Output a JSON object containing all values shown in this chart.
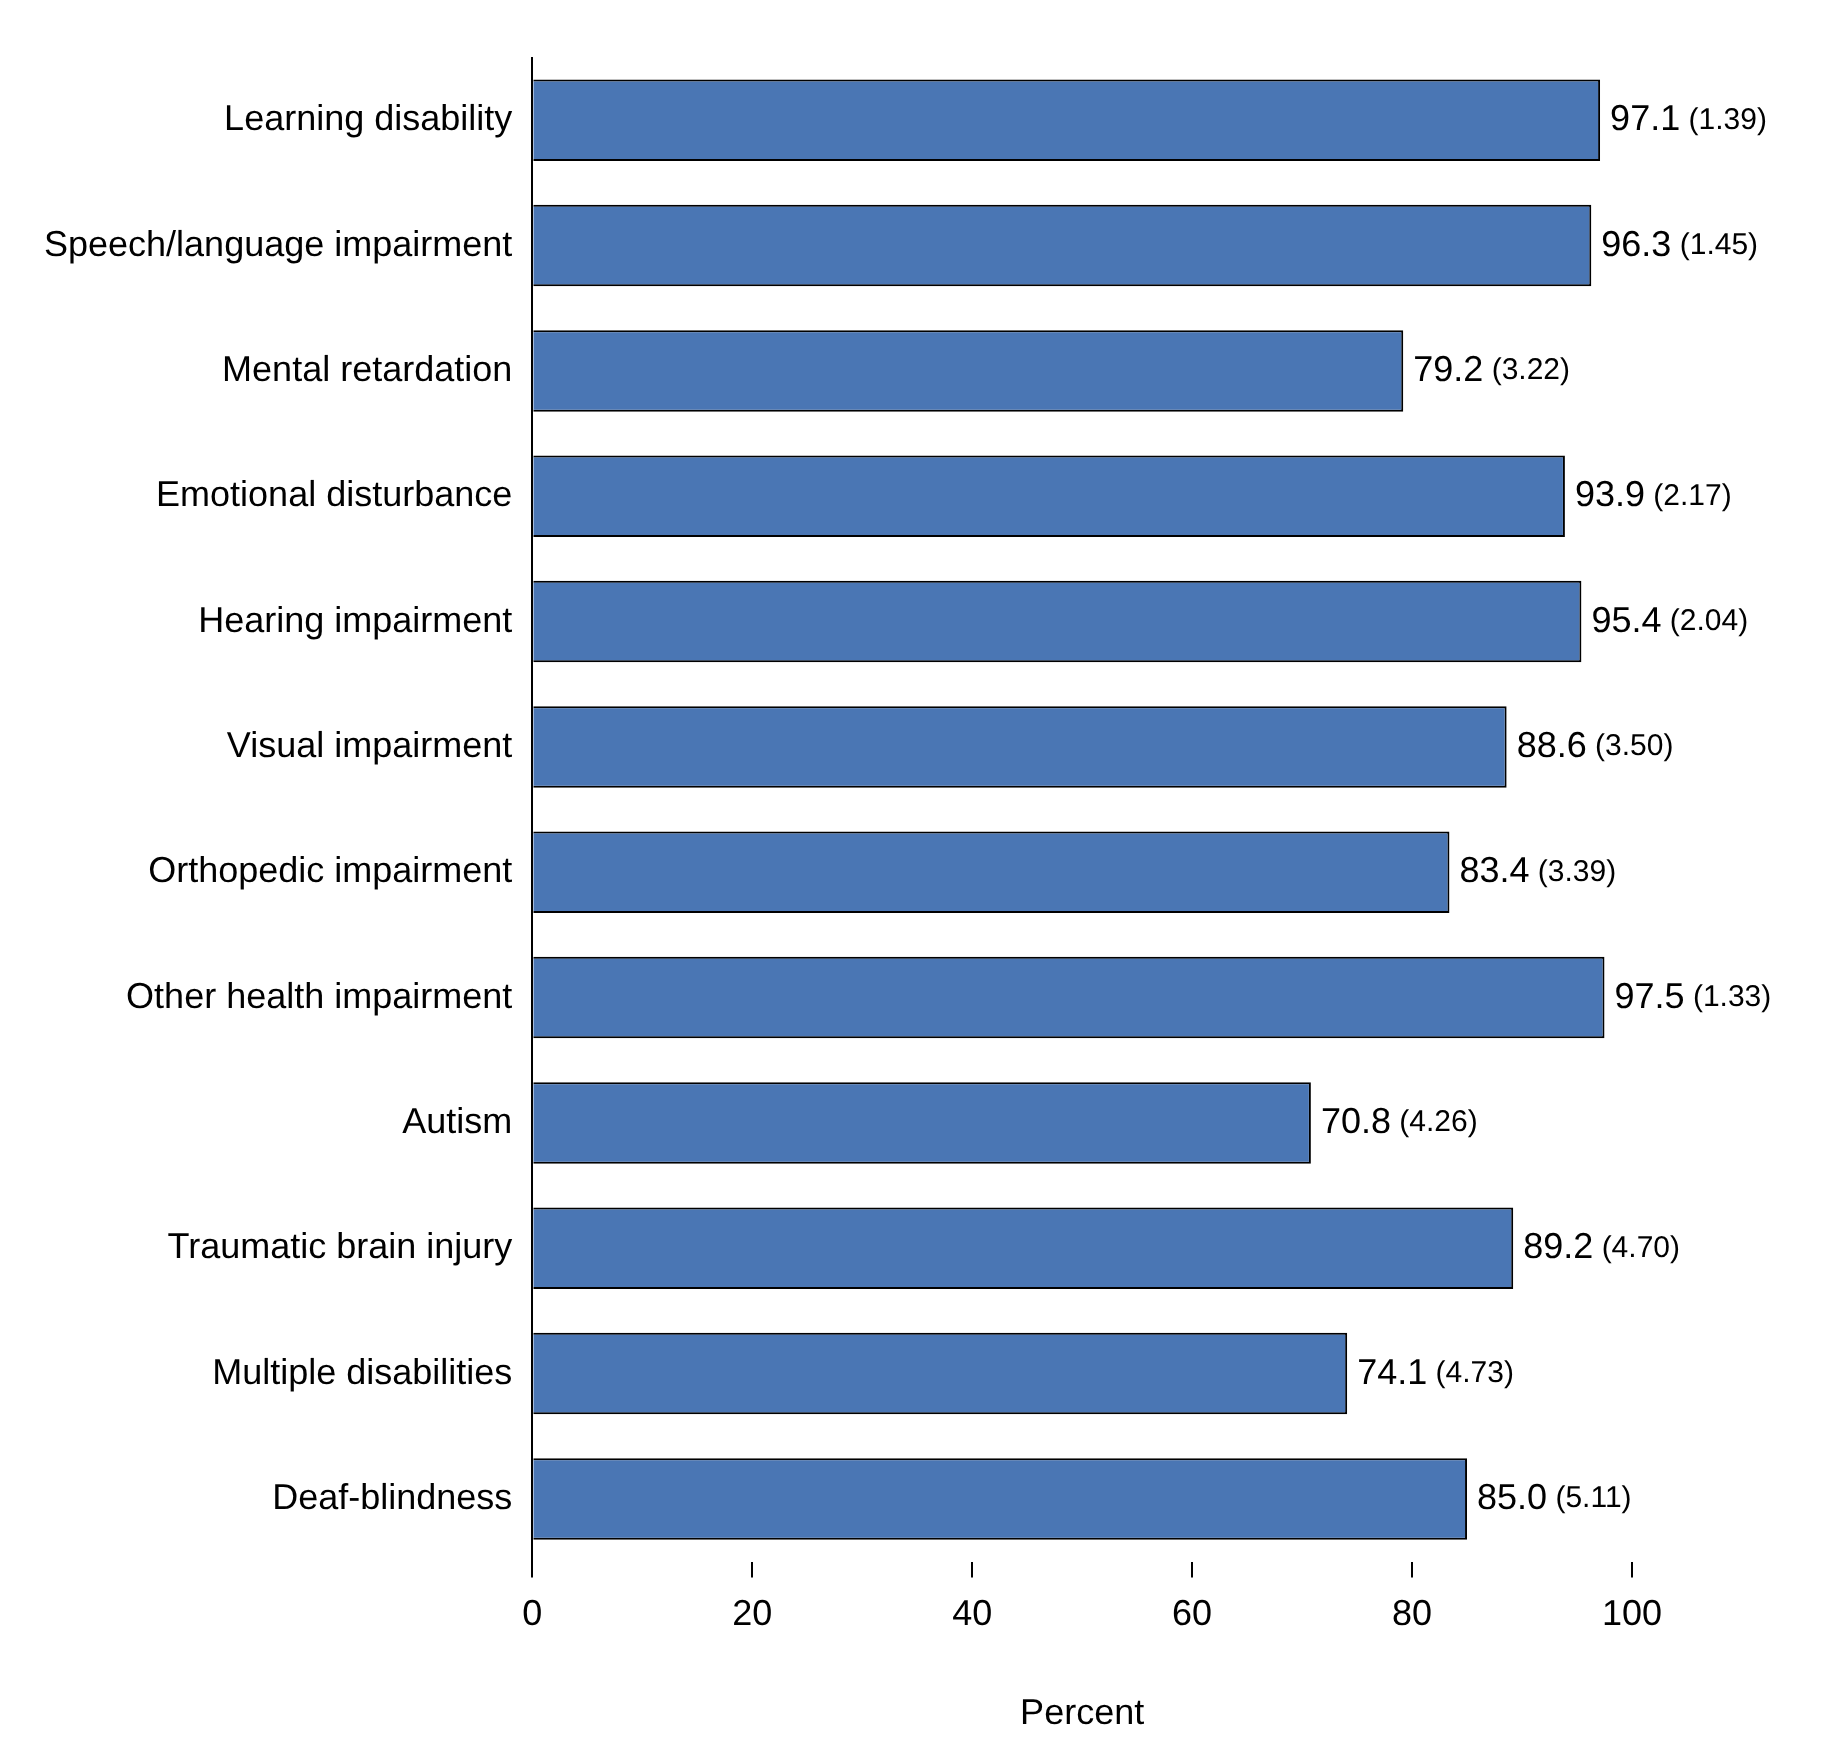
{
  "chart_data": {
    "type": "bar",
    "orientation": "horizontal",
    "xlabel": "Percent",
    "categories": [
      "Learning disability",
      "Speech/language impairment",
      "Mental retardation",
      "Emotional disturbance",
      "Hearing impairment",
      "Visual impairment",
      "Orthopedic impairment",
      "Other health impairment",
      "Autism",
      "Traumatic brain injury",
      "Multiple disabilities",
      "Deaf-blindness"
    ],
    "values": [
      97.1,
      96.3,
      79.2,
      93.9,
      95.4,
      88.6,
      83.4,
      97.5,
      70.8,
      89.2,
      74.1,
      85.0
    ],
    "value_labels": [
      "97.1 (1.39)",
      "96.3 (1.45)",
      "79.2 (3.22)",
      "93.9 (2.17)",
      "95.4 (2.04)",
      "88.6 (3.50)",
      "83.4 (3.39)",
      "97.5 (1.33)",
      "70.8 (4.26)",
      "89.2 (4.70)",
      "74.1 (4.73)",
      "85.0 (5.11)"
    ],
    "color": "#4a76b4",
    "xlim": [
      0,
      100
    ],
    "xticks": [
      0,
      20,
      40,
      60,
      80,
      100
    ],
    "grid": false,
    "legend": false
  }
}
